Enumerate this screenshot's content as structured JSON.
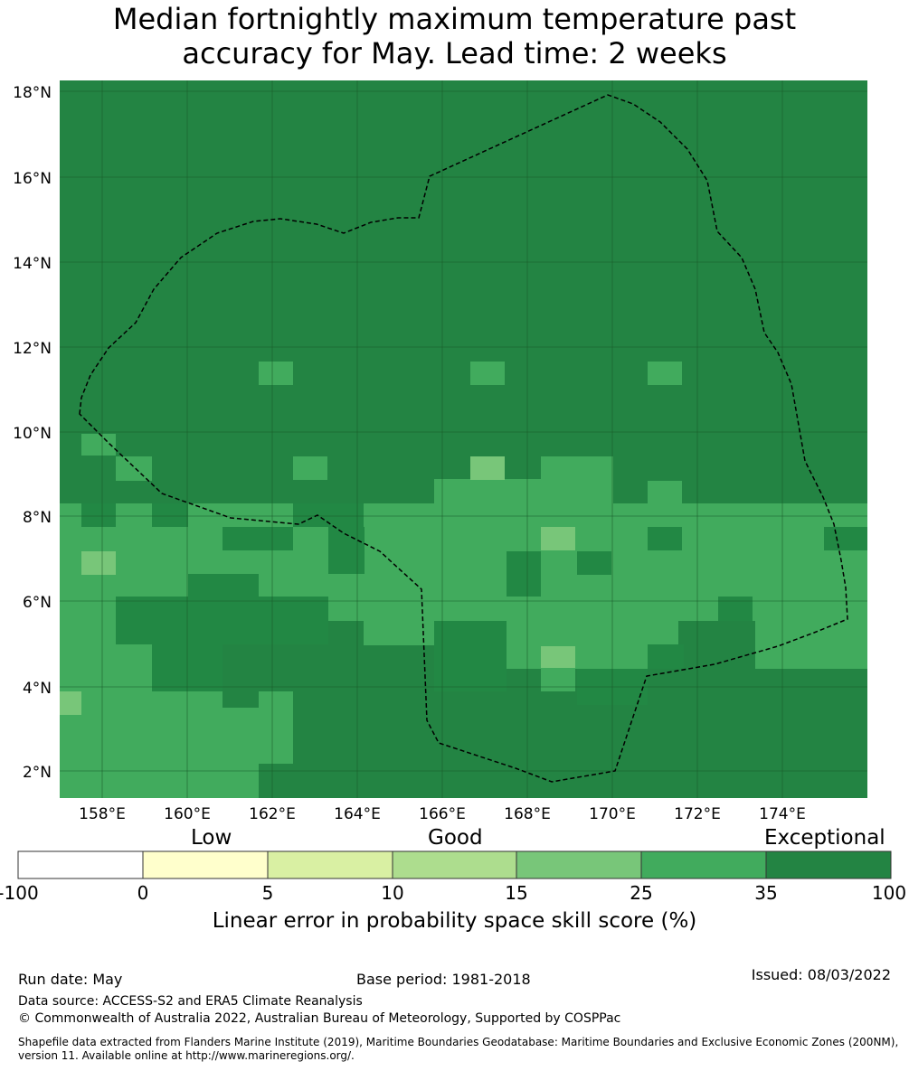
{
  "title": {
    "line1": "Median fortnightly maximum temperature past",
    "line2": "accuracy for May. Lead time: 2 weeks"
  },
  "map": {
    "lat_ticks": [
      "18°N",
      "16°N",
      "14°N",
      "12°N",
      "10°N",
      "8°N",
      "6°N",
      "4°N",
      "2°N"
    ],
    "lon_ticks": [
      "158°E",
      "160°E",
      "162°E",
      "164°E",
      "166°E",
      "168°E",
      "170°E",
      "172°E",
      "174°E"
    ],
    "base_color": "#228844",
    "boundary_style": "dashed"
  },
  "colorbar": {
    "words": {
      "low": "Low",
      "good": "Good",
      "exceptional": "Exceptional"
    },
    "ticks": [
      "-100",
      "0",
      "5",
      "10",
      "15",
      "25",
      "35",
      "100"
    ],
    "colors": [
      "#ffffff",
      "#ffffcc",
      "#d9f0a3",
      "#addd8e",
      "#78c679",
      "#41ab5d",
      "#238443"
    ],
    "label": "Linear error in probability space skill score (%)"
  },
  "footer": {
    "run_date": "Run date: May",
    "base_period": "Base period: 1981-2018",
    "issued": "Issued: 08/03/2022",
    "data_source": "Data source: ACCESS-S2 and ERA5 Climate Reanalysis",
    "copyright": "© Commonwealth of Australia 2022, Australian Bureau of Meteorology, Supported by COSPPac",
    "shapefile_line1": "Shapefile data extracted from Flanders Marine Institute (2019), Maritime Boundaries Geodatabase: Maritime Boundaries and Exclusive Economic Zones (200NM),",
    "shapefile_line2": "version 11. Available online at http://www.marineregions.org/."
  }
}
